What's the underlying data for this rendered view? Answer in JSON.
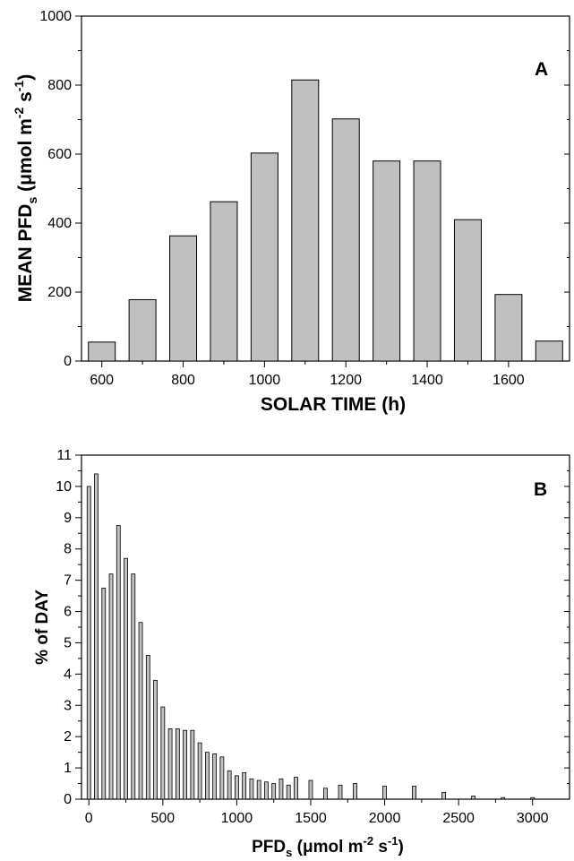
{
  "chart_data": [
    {
      "type": "bar",
      "panel_label": "A",
      "xlabel": "SOLAR TIME (h)",
      "ylabel": {
        "main": "MEAN PFD",
        "sub": "s",
        "unit_pre": " (μmol m",
        "exp1": "-2",
        "unit_mid": " s",
        "exp2": "-1",
        "unit_post": ")"
      },
      "xlim": [
        550,
        1750
      ],
      "ylim": [
        0,
        1000
      ],
      "x": [
        600,
        700,
        800,
        900,
        1000,
        1100,
        1200,
        1300,
        1400,
        1500,
        1600,
        1700
      ],
      "values": [
        55,
        178,
        363,
        462,
        603,
        815,
        702,
        580,
        580,
        410,
        193,
        58
      ],
      "xticks": [
        600,
        800,
        1000,
        1200,
        1400,
        1600
      ],
      "yticks": [
        0,
        200,
        400,
        600,
        800,
        1000
      ],
      "bar_color": "#c0c0c0",
      "grid": false
    },
    {
      "type": "bar",
      "panel_label": "B",
      "xlabel": {
        "main": "PFD",
        "sub": "s",
        "unit_pre": " (μmol m",
        "exp1": "-2",
        "unit_mid": " s",
        "exp2": "-1",
        "unit_post": ")"
      },
      "ylabel": "% of DAY",
      "xlim": [
        -50,
        3250
      ],
      "ylim": [
        0,
        11
      ],
      "x": [
        0,
        50,
        100,
        150,
        200,
        250,
        300,
        350,
        400,
        450,
        500,
        550,
        600,
        650,
        700,
        750,
        800,
        850,
        900,
        950,
        1000,
        1050,
        1100,
        1150,
        1200,
        1250,
        1300,
        1350,
        1400,
        1500,
        1600,
        1700,
        1800,
        2000,
        2200,
        2400,
        2600,
        2800,
        3000
      ],
      "values": [
        10.0,
        10.4,
        6.75,
        7.2,
        8.75,
        7.7,
        7.2,
        5.65,
        4.6,
        3.8,
        2.95,
        2.25,
        2.25,
        2.2,
        2.2,
        1.8,
        1.5,
        1.45,
        1.35,
        0.9,
        0.75,
        0.85,
        0.65,
        0.6,
        0.55,
        0.5,
        0.65,
        0.45,
        0.7,
        0.6,
        0.35,
        0.45,
        0.5,
        0.42,
        0.42,
        0.22,
        0.1,
        0.05,
        0.05
      ],
      "xticks": [
        0,
        500,
        1000,
        1500,
        2000,
        2500,
        3000
      ],
      "yticks": [
        0,
        1,
        2,
        3,
        4,
        5,
        6,
        7,
        8,
        9,
        10,
        11
      ],
      "bar_color": "#c0c0c0",
      "grid": false
    }
  ]
}
